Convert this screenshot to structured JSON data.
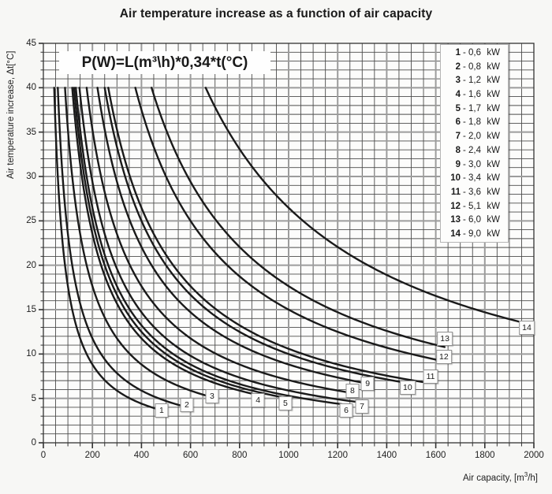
{
  "title": "Air temperature increase as a function of air capacity",
  "formula": "P(W)=L(m³\\h)*0,34*t(°C)",
  "axes": {
    "x": {
      "label_prefix": "Air capacity, [m",
      "label_sup": "3",
      "label_suffix": "/h]",
      "min": 0,
      "max": 2000,
      "major_tick_labels": [
        "0",
        "200",
        "400",
        "600",
        "800",
        "1000",
        "1200",
        "1400",
        "1600",
        "1800",
        "2000"
      ],
      "major_step": 200,
      "minor_step": 50
    },
    "y": {
      "label": "Air temperature increase, Δt[°C]",
      "min": 0,
      "max": 45,
      "major_tick_labels": [
        "0",
        "5",
        "10",
        "15",
        "20",
        "25",
        "30",
        "35",
        "40",
        "45"
      ],
      "major_step": 5,
      "minor_step": 1
    }
  },
  "legend": {
    "items": [
      {
        "num": "1",
        "value": "0,6",
        "unit": "kW"
      },
      {
        "num": "2",
        "value": "0,8",
        "unit": "kW"
      },
      {
        "num": "3",
        "value": "1,2",
        "unit": "kW"
      },
      {
        "num": "4",
        "value": "1,6",
        "unit": "kW"
      },
      {
        "num": "5",
        "value": "1,7",
        "unit": "kW"
      },
      {
        "num": "6",
        "value": "1,8",
        "unit": "kW"
      },
      {
        "num": "7",
        "value": "2,0",
        "unit": "kW"
      },
      {
        "num": "8",
        "value": "2,4",
        "unit": "kW"
      },
      {
        "num": "9",
        "value": "3,0",
        "unit": "kW"
      },
      {
        "num": "10",
        "value": "3,4",
        "unit": "kW"
      },
      {
        "num": "11",
        "value": "3,6",
        "unit": "kW"
      },
      {
        "num": "12",
        "value": "5,1",
        "unit": "kW"
      },
      {
        "num": "13",
        "value": "6,0",
        "unit": "kW"
      },
      {
        "num": "14",
        "value": "9,0",
        "unit": "kW"
      }
    ]
  },
  "chart_data": {
    "type": "line",
    "title": "Air temperature increase as a function of air capacity",
    "xlabel": "Air capacity, [m³/h]",
    "ylabel": "Air temperature increase, Δt[°C]",
    "xlim": [
      0,
      2000
    ],
    "ylim": [
      0,
      45
    ],
    "grid": "on",
    "legend_position": "top-right",
    "relation": "Δt(°C) = P(W) / (0.34 × L(m³/h)); each curve is this hyperbola for fixed P, clipped at Δt = 40",
    "curve_clip_t_max": 40,
    "series": [
      {
        "id": "1",
        "power_kW": 0.6,
        "x_start_at_t40": 44.1,
        "x_end": 480
      },
      {
        "id": "2",
        "power_kW": 0.8,
        "x_start_at_t40": 58.8,
        "x_end": 585
      },
      {
        "id": "3",
        "power_kW": 1.2,
        "x_start_at_t40": 88.2,
        "x_end": 690
      },
      {
        "id": "4",
        "power_kW": 1.6,
        "x_start_at_t40": 117.6,
        "x_end": 875
      },
      {
        "id": "5",
        "power_kW": 1.7,
        "x_start_at_t40": 125.0,
        "x_end": 985
      },
      {
        "id": "6",
        "power_kW": 1.8,
        "x_start_at_t40": 132.4,
        "x_end": 1235
      },
      {
        "id": "7",
        "power_kW": 2.0,
        "x_start_at_t40": 147.1,
        "x_end": 1300
      },
      {
        "id": "8",
        "power_kW": 2.4,
        "x_start_at_t40": 176.5,
        "x_end": 1262
      },
      {
        "id": "9",
        "power_kW": 3.0,
        "x_start_at_t40": 220.6,
        "x_end": 1325
      },
      {
        "id": "10",
        "power_kW": 3.4,
        "x_start_at_t40": 250.0,
        "x_end": 1487
      },
      {
        "id": "11",
        "power_kW": 3.6,
        "x_start_at_t40": 264.7,
        "x_end": 1560
      },
      {
        "id": "12",
        "power_kW": 5.1,
        "x_start_at_t40": 375.0,
        "x_end": 1632
      },
      {
        "id": "13",
        "power_kW": 6.0,
        "x_start_at_t40": 441.2,
        "x_end": 1636
      },
      {
        "id": "14",
        "power_kW": 9.0,
        "x_start_at_t40": 661.8,
        "x_end": 1972
      }
    ],
    "curve_number_labels": [
      {
        "n": "1",
        "x": 482,
        "t": 3.6
      },
      {
        "n": "2",
        "x": 585,
        "t": 4.3
      },
      {
        "n": "3",
        "x": 688,
        "t": 5.2
      },
      {
        "n": "4",
        "x": 875,
        "t": 4.8
      },
      {
        "n": "5",
        "x": 987,
        "t": 4.4
      },
      {
        "n": "6",
        "x": 1235,
        "t": 3.6
      },
      {
        "n": "7",
        "x": 1299,
        "t": 4.1
      },
      {
        "n": "8",
        "x": 1260,
        "t": 5.9
      },
      {
        "n": "9",
        "x": 1322,
        "t": 6.7
      },
      {
        "n": "10",
        "x": 1485,
        "t": 6.2
      },
      {
        "n": "11",
        "x": 1579,
        "t": 7.5
      },
      {
        "n": "12",
        "x": 1633,
        "t": 9.7
      },
      {
        "n": "13",
        "x": 1637,
        "t": 11.7
      },
      {
        "n": "14",
        "x": 1971,
        "t": 13.0
      }
    ]
  },
  "colors": {
    "page_bg": "#f7f7f5",
    "plot_bg": "#fcfcfb",
    "grid_minor": "#4b4b4b",
    "grid_major": "#9c9c9c",
    "axis": "#333333",
    "curve": "#1a1a1a",
    "text": "#1c1c1c"
  }
}
